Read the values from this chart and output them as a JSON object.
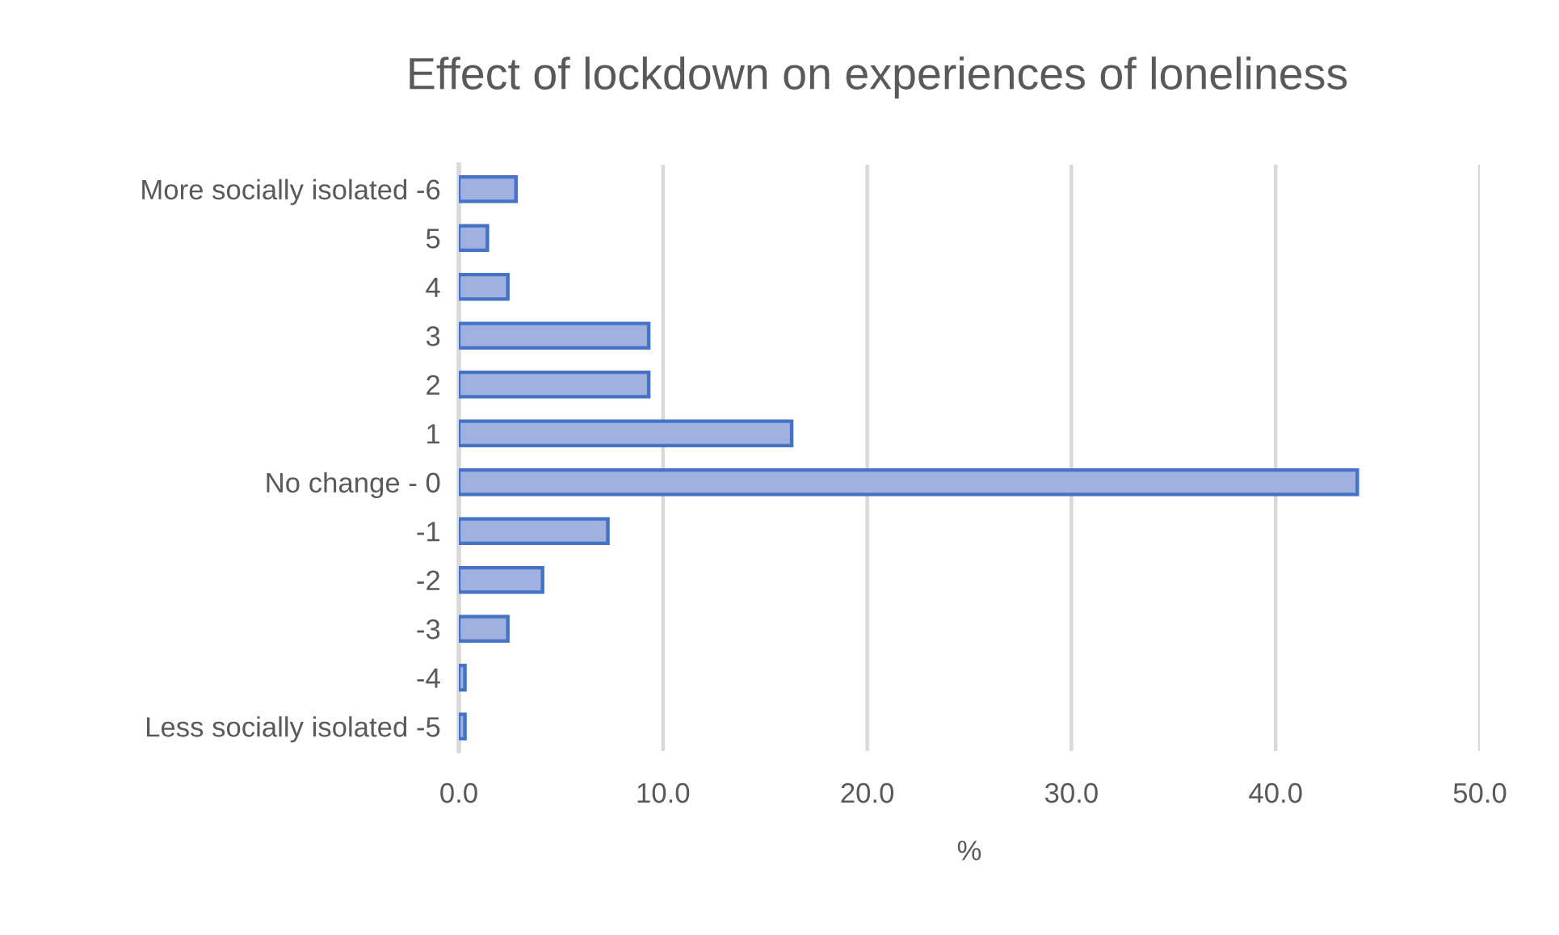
{
  "chart_data": {
    "type": "bar",
    "orientation": "horizontal",
    "title": "Effect of lockdown on experiences of loneliness",
    "xlabel": "%",
    "categories": [
      "More socially isolated -6",
      "5",
      "4",
      "3",
      "2",
      "1",
      "No change - 0",
      "-1",
      "-2",
      "-3",
      "-4",
      "Less socially isolated -5"
    ],
    "values": [
      2.8,
      1.4,
      2.4,
      9.3,
      9.3,
      16.3,
      44.0,
      7.3,
      4.1,
      2.4,
      0.3,
      0.3
    ],
    "color": "#a0b1e0",
    "xlim": [
      0,
      50
    ],
    "xticks": [
      {
        "value": 0,
        "label": "0.0"
      },
      {
        "value": 10,
        "label": "10.0"
      },
      {
        "value": 20,
        "label": "20.0"
      },
      {
        "value": 30,
        "label": "30.0"
      },
      {
        "value": 40,
        "label": "40.0"
      },
      {
        "value": 50,
        "label": "50.0"
      }
    ],
    "grid": "x"
  }
}
